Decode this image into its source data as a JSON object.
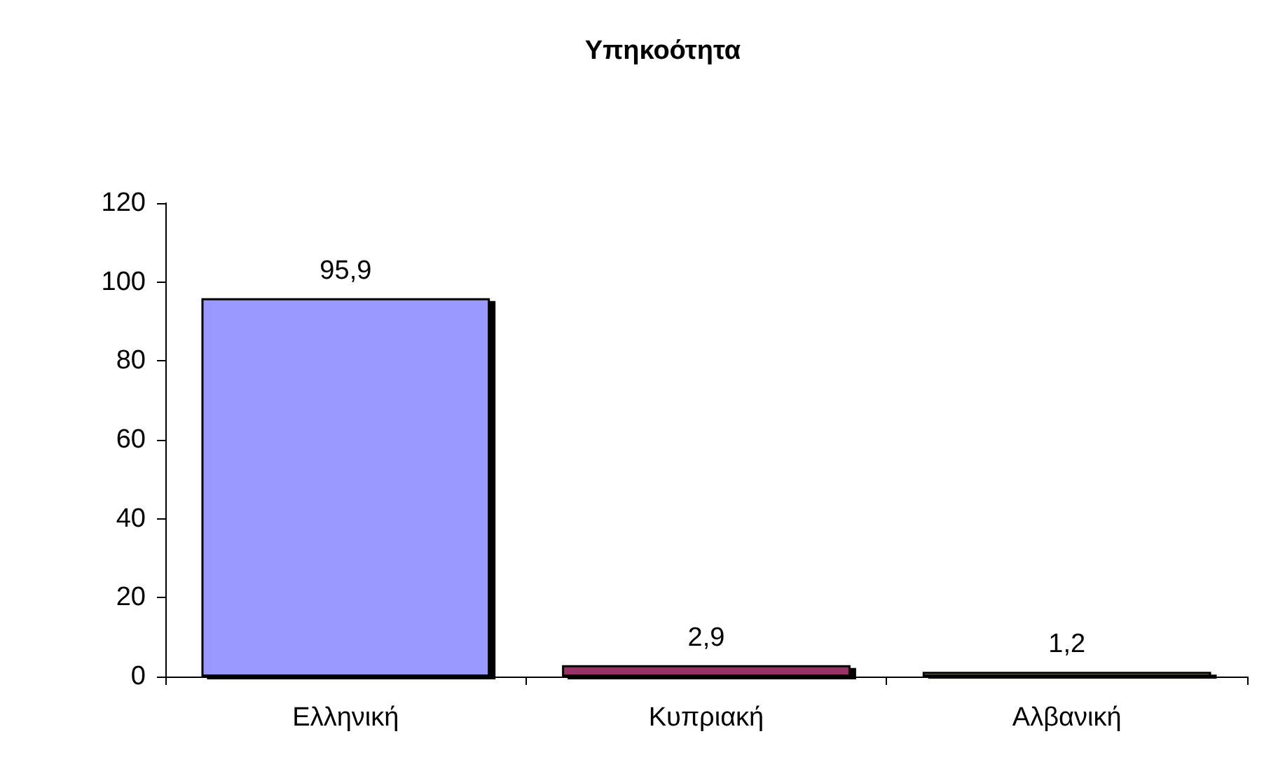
{
  "chart_data": {
    "type": "bar",
    "title": "Υπηκοότητα",
    "categories": [
      "Ελληνική",
      "Κυπριακή",
      "Αλβανική"
    ],
    "values": [
      95.9,
      2.9,
      1.2
    ],
    "colors": [
      "#9999ff",
      "#993366",
      "#999966"
    ],
    "value_labels": [
      "95,9",
      "2,9",
      "1,2"
    ],
    "ylim": [
      0,
      120
    ],
    "yticks": [
      0,
      20,
      40,
      60,
      80,
      100,
      120
    ],
    "grid": false
  }
}
